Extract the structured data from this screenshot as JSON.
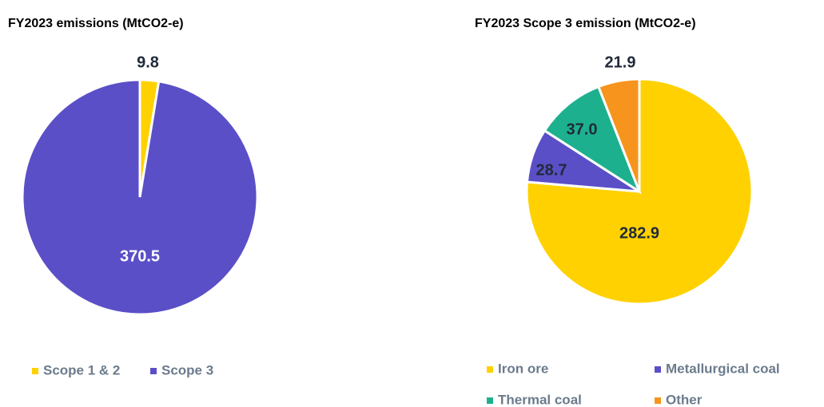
{
  "chart_data": [
    {
      "type": "pie",
      "title": "FY2023 emissions (MtCO2-e)",
      "categories": [
        "Scope 1 & 2",
        "Scope 3"
      ],
      "values": [
        9.8,
        370.5
      ],
      "colors": [
        "#ffd100",
        "#5b4fc7"
      ],
      "legend": "bottom"
    },
    {
      "type": "pie",
      "title": "FY2023 Scope 3 emission (MtCO2-e)",
      "categories": [
        "Iron ore",
        "Metallurgical coal",
        "Thermal coal",
        "Other"
      ],
      "values": [
        282.9,
        28.7,
        37,
        21.9
      ],
      "value_labels": [
        "282.9",
        "28.7",
        "37.0",
        "21.9"
      ],
      "colors": [
        "#ffd100",
        "#5b4fc7",
        "#1db08f",
        "#f7941d"
      ],
      "legend": "bottom"
    }
  ]
}
